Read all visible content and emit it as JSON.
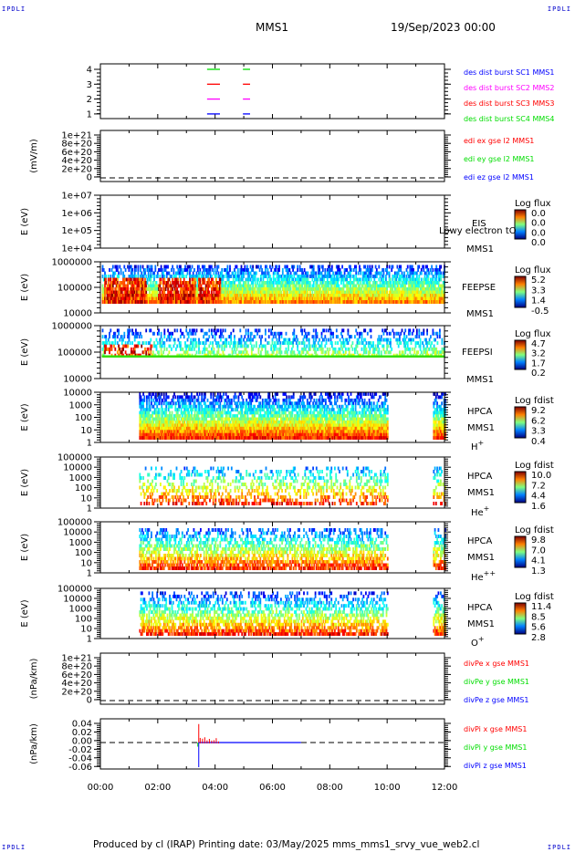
{
  "header": {
    "corner_label": "IPDLI",
    "mission": "MMS1",
    "date": "19/Sep/2023 00:00"
  },
  "footer": {
    "text": "Produced by cl (IRAP)   Printing date: 03/May/2025   mms_mms1_srvy_vue_web2.cl"
  },
  "chart_data": {
    "type": "heatmap",
    "xaxis": {
      "range_hours": [
        0,
        12
      ],
      "ticks": [
        "00:00",
        "02:00",
        "04:00",
        "06:00",
        "08:00",
        "10:00",
        "12:00"
      ]
    },
    "panels": [
      {
        "id": "des-dist",
        "kind": "line",
        "ylabel": "",
        "yticks": [
          "4",
          "3",
          "2",
          "1"
        ],
        "ylim": [
          0.5,
          4.5
        ],
        "legend": [
          {
            "text": "des dist burst SC1 MMS1",
            "color": "#0000ff"
          },
          {
            "text": "des dist burst SC2 MMS2",
            "color": "#ff00ff"
          },
          {
            "text": "des dist burst SC3 MMS3",
            "color": "#ff0000"
          },
          {
            "text": "des dist burst SC4 MMS4",
            "color": "#00dd00"
          }
        ],
        "segments": [
          [
            3.72,
            4.17
          ],
          [
            4.97,
            5.22
          ]
        ],
        "level_colors": [
          "#0000ff",
          "#ff00ff",
          "#ff0000",
          "#00dd00"
        ]
      },
      {
        "id": "edi-e",
        "kind": "line",
        "ylabel": "(mV/m)",
        "yticks": [
          "1e+21",
          "8e+20",
          "6e+20",
          "4e+20",
          "2e+20",
          "0"
        ],
        "ylim": [
          0,
          1.1e+21
        ],
        "legend": [
          {
            "text": "edi ex gse l2 MMS1",
            "color": "#ff0000"
          },
          {
            "text": "edi ey gse l2 MMS1",
            "color": "#00dd00"
          },
          {
            "text": "edi ez gse l2 MMS1",
            "color": "#0000ff"
          }
        ]
      },
      {
        "id": "eis",
        "kind": "spec",
        "ylabel": "E (eV)",
        "yticks": [
          "1e+07",
          "1e+06",
          "1e+05",
          "1e+04"
        ],
        "labels": [
          "EIS",
          "Lowy electron tO",
          "MMS1"
        ],
        "cbar_title": "Log flux",
        "cbar_ticks": [
          "0.0",
          "0.0",
          "0.0",
          "0.0"
        ],
        "coverage": []
      },
      {
        "id": "feepse",
        "kind": "spec",
        "ylabel": "E (eV)",
        "yticks": [
          "1000000",
          "100000",
          "10000"
        ],
        "labels": [
          "FEEPSE",
          "MMS1"
        ],
        "cbar_title": "Log flux",
        "cbar_ticks": [
          "5.2",
          "3.3",
          "1.4",
          "-0.5"
        ],
        "coverage": [
          [
            0.05,
            12
          ]
        ],
        "hot": [
          [
            0.1,
            1.6
          ],
          [
            2.0,
            3.3
          ],
          [
            3.4,
            4.2
          ]
        ],
        "band": [
          0.02,
          0.75
        ],
        "density": 0.97
      },
      {
        "id": "feepsi",
        "kind": "spec",
        "ylabel": "E (eV)",
        "yticks": [
          "1000000",
          "100000",
          "10000"
        ],
        "labels": [
          "FEEPSI",
          "MMS1"
        ],
        "cbar_title": "Log flux",
        "cbar_ticks": [
          "4.7",
          "3.2",
          "1.7",
          "0.2"
        ],
        "coverage": [
          [
            0.05,
            12
          ]
        ],
        "hot": [
          [
            0.1,
            1.8
          ]
        ],
        "band": [
          0.02,
          0.55
        ],
        "density": 0.55
      },
      {
        "id": "hpca-h",
        "kind": "spec",
        "ylabel": "E (eV)",
        "yticks": [
          "10000",
          "1000",
          "100",
          "10",
          "1"
        ],
        "labels": [
          "HPCA",
          "MMS1",
          "H+"
        ],
        "cbar_title": "Log fdist",
        "cbar_ticks": [
          "9.2",
          "6.2",
          "3.3",
          "0.4"
        ],
        "coverage": [
          [
            1.35,
            10.0
          ],
          [
            11.6,
            12
          ]
        ],
        "band": [
          0,
          0.9
        ],
        "density": 0.98
      },
      {
        "id": "hpca-he",
        "kind": "spec",
        "ylabel": "E (eV)",
        "yticks": [
          "100000",
          "10000",
          "1000",
          "100",
          "10",
          "1"
        ],
        "labels": [
          "HPCA",
          "MMS1",
          "He+"
        ],
        "cbar_title": "Log fdist",
        "cbar_ticks": [
          "10.0",
          "7.2",
          "4.4",
          "1.6"
        ],
        "coverage": [
          [
            1.35,
            10.0
          ],
          [
            11.6,
            12
          ]
        ],
        "band": [
          0.15,
          0.9
        ],
        "density": 0.35
      },
      {
        "id": "hpca-he2",
        "kind": "spec",
        "ylabel": "E (eV)",
        "yticks": [
          "100000",
          "10000",
          "1000",
          "100",
          "10",
          "1"
        ],
        "labels": [
          "HPCA",
          "MMS1",
          "He++"
        ],
        "cbar_title": "Log fdist",
        "cbar_ticks": [
          "9.8",
          "7.0",
          "4.1",
          "1.3"
        ],
        "coverage": [
          [
            1.35,
            10.0
          ],
          [
            11.6,
            12
          ]
        ],
        "band": [
          0.1,
          0.9
        ],
        "density": 0.6
      },
      {
        "id": "hpca-o",
        "kind": "spec",
        "ylabel": "E (eV)",
        "yticks": [
          "100000",
          "10000",
          "1000",
          "100",
          "10",
          "1"
        ],
        "labels": [
          "HPCA",
          "MMS1",
          "O+"
        ],
        "cbar_title": "Log fdist",
        "cbar_ticks": [
          "11.4",
          "8.5",
          "5.6",
          "2.8"
        ],
        "coverage": [
          [
            1.35,
            10.0
          ],
          [
            11.6,
            12
          ]
        ],
        "band": [
          0.05,
          0.9
        ],
        "density": 0.6
      },
      {
        "id": "divpe",
        "kind": "line",
        "ylabel": "(nPa/km)",
        "yticks": [
          "1e+21",
          "8e+20",
          "6e+20",
          "4e+20",
          "2e+20",
          "0"
        ],
        "ylim": [
          0,
          1.1e+21
        ],
        "legend": [
          {
            "text": "divPe x gse MMS1",
            "color": "#ff0000"
          },
          {
            "text": "divPe y gse MMS1",
            "color": "#00dd00"
          },
          {
            "text": "divPe z gse MMS1",
            "color": "#0000ff"
          }
        ]
      },
      {
        "id": "divpi",
        "kind": "line",
        "ylabel": "(nPa/km)",
        "yticks": [
          "0.04",
          "0.02",
          "0.00",
          "-0.02",
          "-0.04",
          "-0.06"
        ],
        "ylim": [
          -0.065,
          0.05
        ],
        "legend": [
          {
            "text": "divPi x gse MMS1",
            "color": "#ff0000"
          },
          {
            "text": "divPi y gse MMS1",
            "color": "#00dd00"
          },
          {
            "text": "divPi z gse MMS1",
            "color": "#0000ff"
          }
        ],
        "spikes": {
          "time": 3.43,
          "x_max": 0.045,
          "z_min": -0.06,
          "y_min": -0.01
        },
        "trace_end": 7.0
      }
    ]
  }
}
